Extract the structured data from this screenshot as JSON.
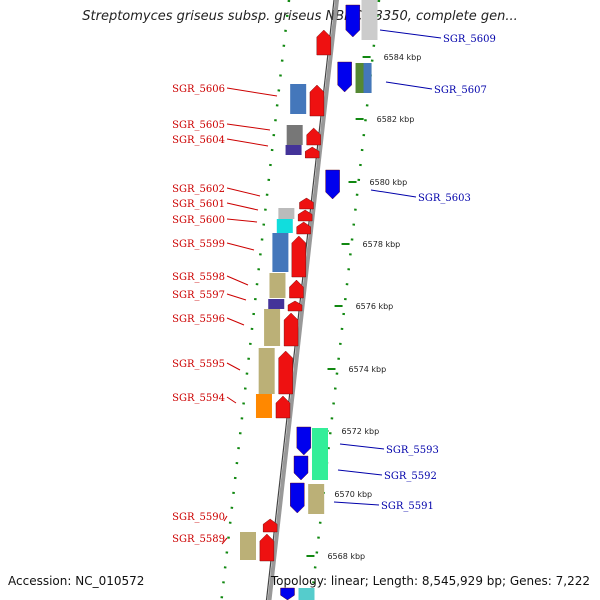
{
  "title": "Streptomyces griseus subsp. griseus NBRC 13350, complete gen...",
  "accession": "Accession: NC_010572",
  "summary": "Topology: linear; Length: 8,545,929 bp; Genes: 7,222",
  "colors": {
    "forward": "#ee1111",
    "reverse": "#0000ee",
    "backbone": "#999999",
    "dots": "#118811",
    "label_left": "#cc0000",
    "label_right": "#0000aa"
  },
  "ticks": [
    "6584 kbp",
    "6582 kbp",
    "6580 kbp",
    "6578 kbp",
    "6576 kbp",
    "6574 kbp",
    "6572 kbp",
    "6570 kbp",
    "6568 kbp"
  ],
  "genes_left": [
    "SGR_5606",
    "SGR_5605",
    "SGR_5604",
    "SGR_5602",
    "SGR_5601",
    "SGR_5600",
    "SGR_5599",
    "SGR_5598",
    "SGR_5597",
    "SGR_5596",
    "SGR_5595",
    "SGR_5594",
    "SGR_5590",
    "SGR_5589"
  ],
  "genes_right": [
    "SGR_5609",
    "SGR_5607",
    "SGR_5603",
    "SGR_5593",
    "SGR_5592",
    "SGR_5591"
  ]
}
